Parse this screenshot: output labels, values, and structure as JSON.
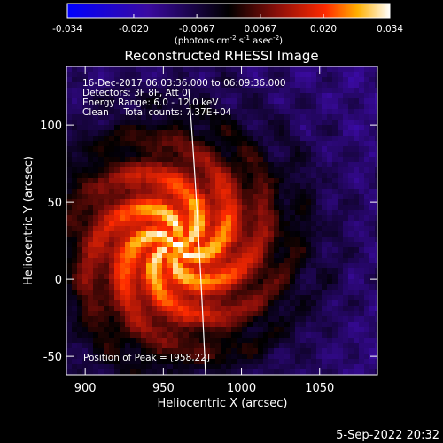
{
  "chart_data": {
    "type": "heatmap",
    "title": "Reconstructed RHESSI Image",
    "xlabel": "Heliocentric X (arcsec)",
    "ylabel": "Heliocentric Y (arcsec)",
    "xlim": [
      888,
      1087
    ],
    "ylim": [
      -62,
      138
    ],
    "xticks": [
      900,
      950,
      1000,
      1050
    ],
    "yticks": [
      -50,
      0,
      50,
      100
    ],
    "colorbar": {
      "range": [
        -0.034,
        0.034
      ],
      "ticks": [
        "-0.034",
        "-0.020",
        "-0.0067",
        "0.0067",
        "0.020",
        "0.034"
      ],
      "units_prefix": "(photons cm",
      "units_exp1": "-2",
      "units_mid": " s",
      "units_exp2": "-1",
      "units_mid2": " asec",
      "units_exp3": "-2",
      "units_suffix": ")"
    },
    "peak": {
      "x": 958,
      "y": 22,
      "value": 0.034
    },
    "annotations": [
      "16-Dec-2017 06:03:36.000 to 06:09:36.000",
      "Detectors: 3F 8F, Att 0",
      "Energy Range: 6.0 - 12.0 keV",
      "Clean     Total counts: 7.37E+04"
    ],
    "peak_label": "Position of Peak = [958,22]"
  },
  "footer_date": "5-Sep-2022 20:32"
}
